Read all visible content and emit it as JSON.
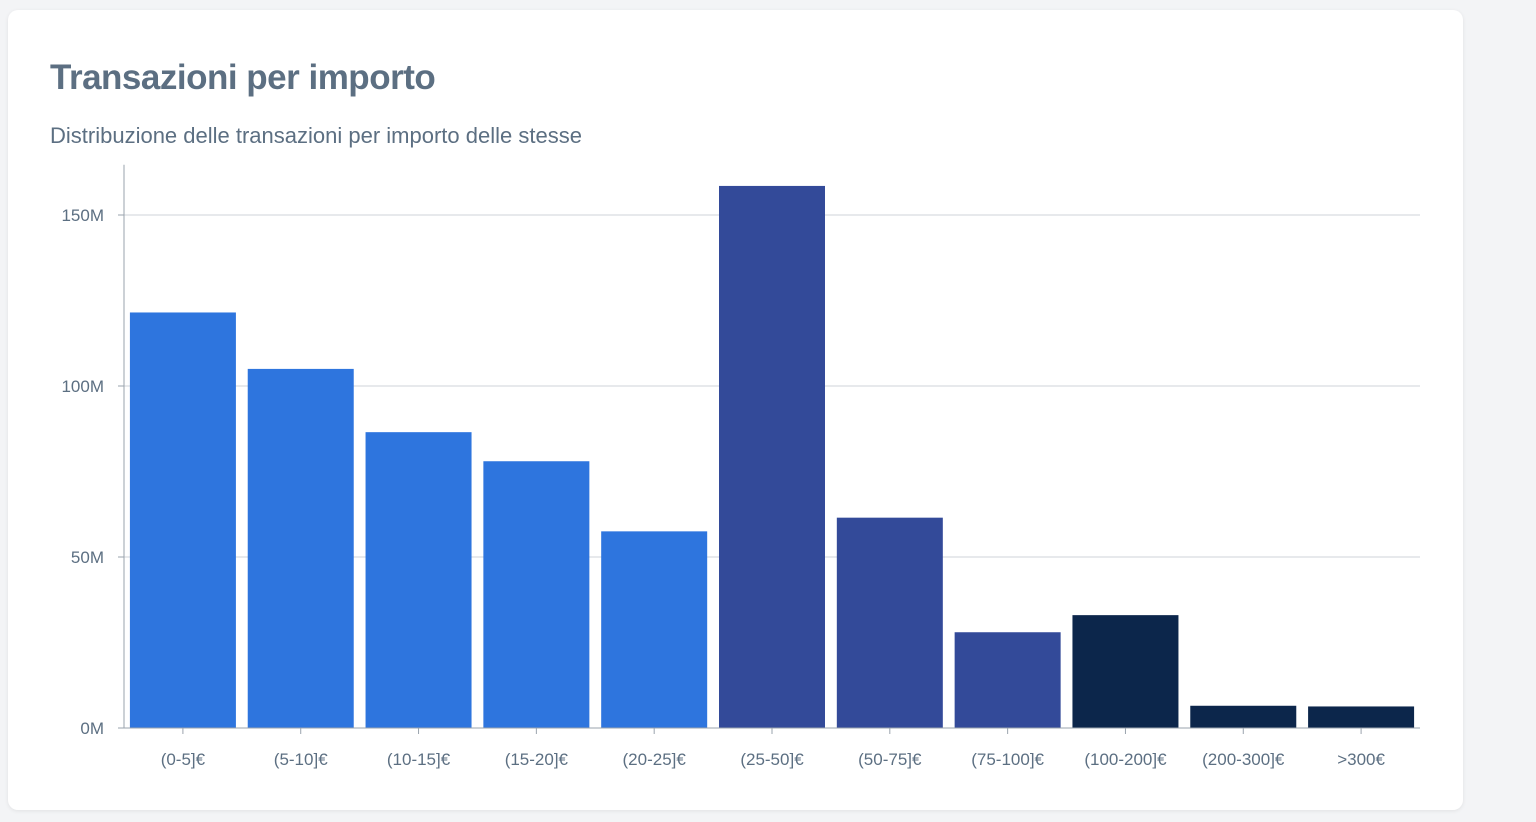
{
  "header": {
    "title": "Transazioni per importo",
    "subtitle": "Distribuzione delle transazioni per importo delle stesse"
  },
  "colors": {
    "light_blue": "#2e75de",
    "mid_blue": "#334a99",
    "dark_blue": "#0c264b",
    "grid": "#cfd3d8",
    "axis": "#9aa3ad",
    "text": "#5c6f82"
  },
  "chart_data": {
    "type": "bar",
    "title": "Transazioni per importo",
    "subtitle": "Distribuzione delle transazioni per importo delle stesse",
    "categories": [
      "(0-5]€",
      "(5-10]€",
      "(10-15]€",
      "(15-20]€",
      "(20-25]€",
      "(25-50]€",
      "(50-75]€",
      "(75-100]€",
      "(100-200]€",
      "(200-300]€",
      ">300€"
    ],
    "values": [
      121.5,
      105,
      86.5,
      78,
      57.5,
      158.5,
      61.5,
      28,
      33,
      6.5,
      6.3
    ],
    "bar_colors": [
      "#2e75de",
      "#2e75de",
      "#2e75de",
      "#2e75de",
      "#2e75de",
      "#334a99",
      "#334a99",
      "#334a99",
      "#0c264b",
      "#0c264b",
      "#0c264b"
    ],
    "unit": "M",
    "ylim": [
      0,
      160
    ],
    "yticks": [
      0,
      50,
      100,
      150
    ],
    "ytick_labels": [
      "0M",
      "50M",
      "100M",
      "150M"
    ],
    "grid": true,
    "legend": false,
    "xlabel": "",
    "ylabel": ""
  }
}
